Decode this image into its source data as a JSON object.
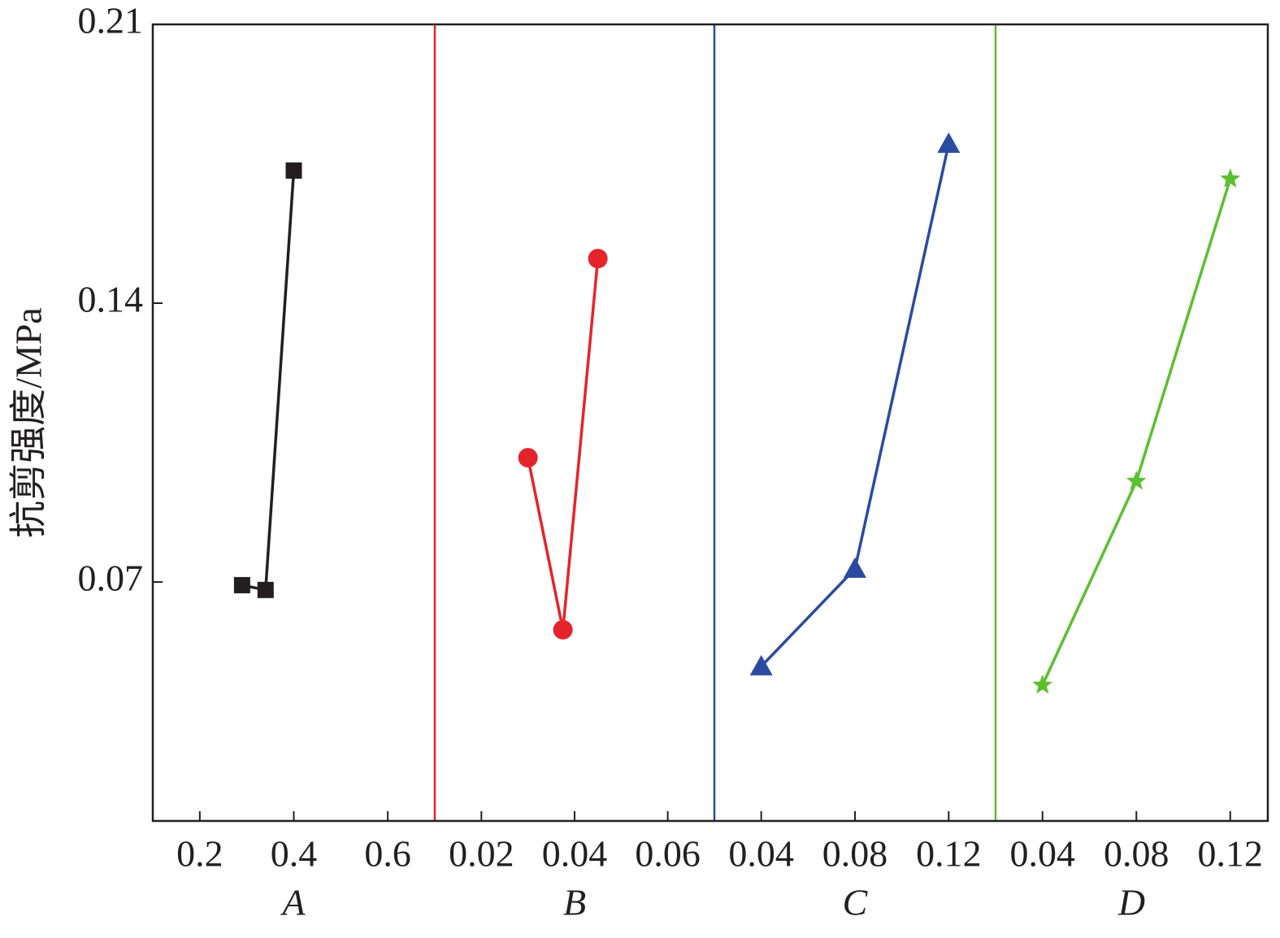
{
  "chart_data": [
    {
      "type": "line",
      "xlabel": "A",
      "ylabel": "抗剪强度/MPa",
      "color": "#231f20",
      "marker": "square",
      "x": [
        0.29,
        0.34,
        0.4
      ],
      "values": [
        0.0692,
        0.068,
        0.1733
      ],
      "xlim": [
        0.1,
        0.7
      ],
      "xticks": [
        0.2,
        0.4,
        0.6
      ],
      "ylim": [
        0.01,
        0.21
      ],
      "yticks": [
        0.07,
        0.14,
        0.21
      ]
    },
    {
      "type": "line",
      "xlabel": "B",
      "color": "#e5232b",
      "marker": "circle",
      "x": [
        0.03,
        0.0375,
        0.045
      ],
      "values": [
        0.1012,
        0.058,
        0.1512
      ],
      "xlim": [
        0.01,
        0.07
      ],
      "xticks": [
        0.02,
        0.04,
        0.06
      ]
    },
    {
      "type": "line",
      "xlabel": "C",
      "color": "#2b4ba0",
      "marker": "triangle",
      "x": [
        0.04,
        0.08,
        0.12
      ],
      "values": [
        0.0488,
        0.0733,
        0.18
      ],
      "xlim": [
        0.02,
        0.14
      ],
      "xticks": [
        0.04,
        0.08,
        0.12
      ]
    },
    {
      "type": "line",
      "xlabel": "D",
      "color": "#5cbf2f",
      "marker": "star",
      "x": [
        0.04,
        0.08,
        0.12
      ],
      "values": [
        0.0441,
        0.0953,
        0.1712
      ],
      "xlim": [
        0.02,
        0.136
      ],
      "xticks": [
        0.04,
        0.08,
        0.12
      ]
    }
  ]
}
